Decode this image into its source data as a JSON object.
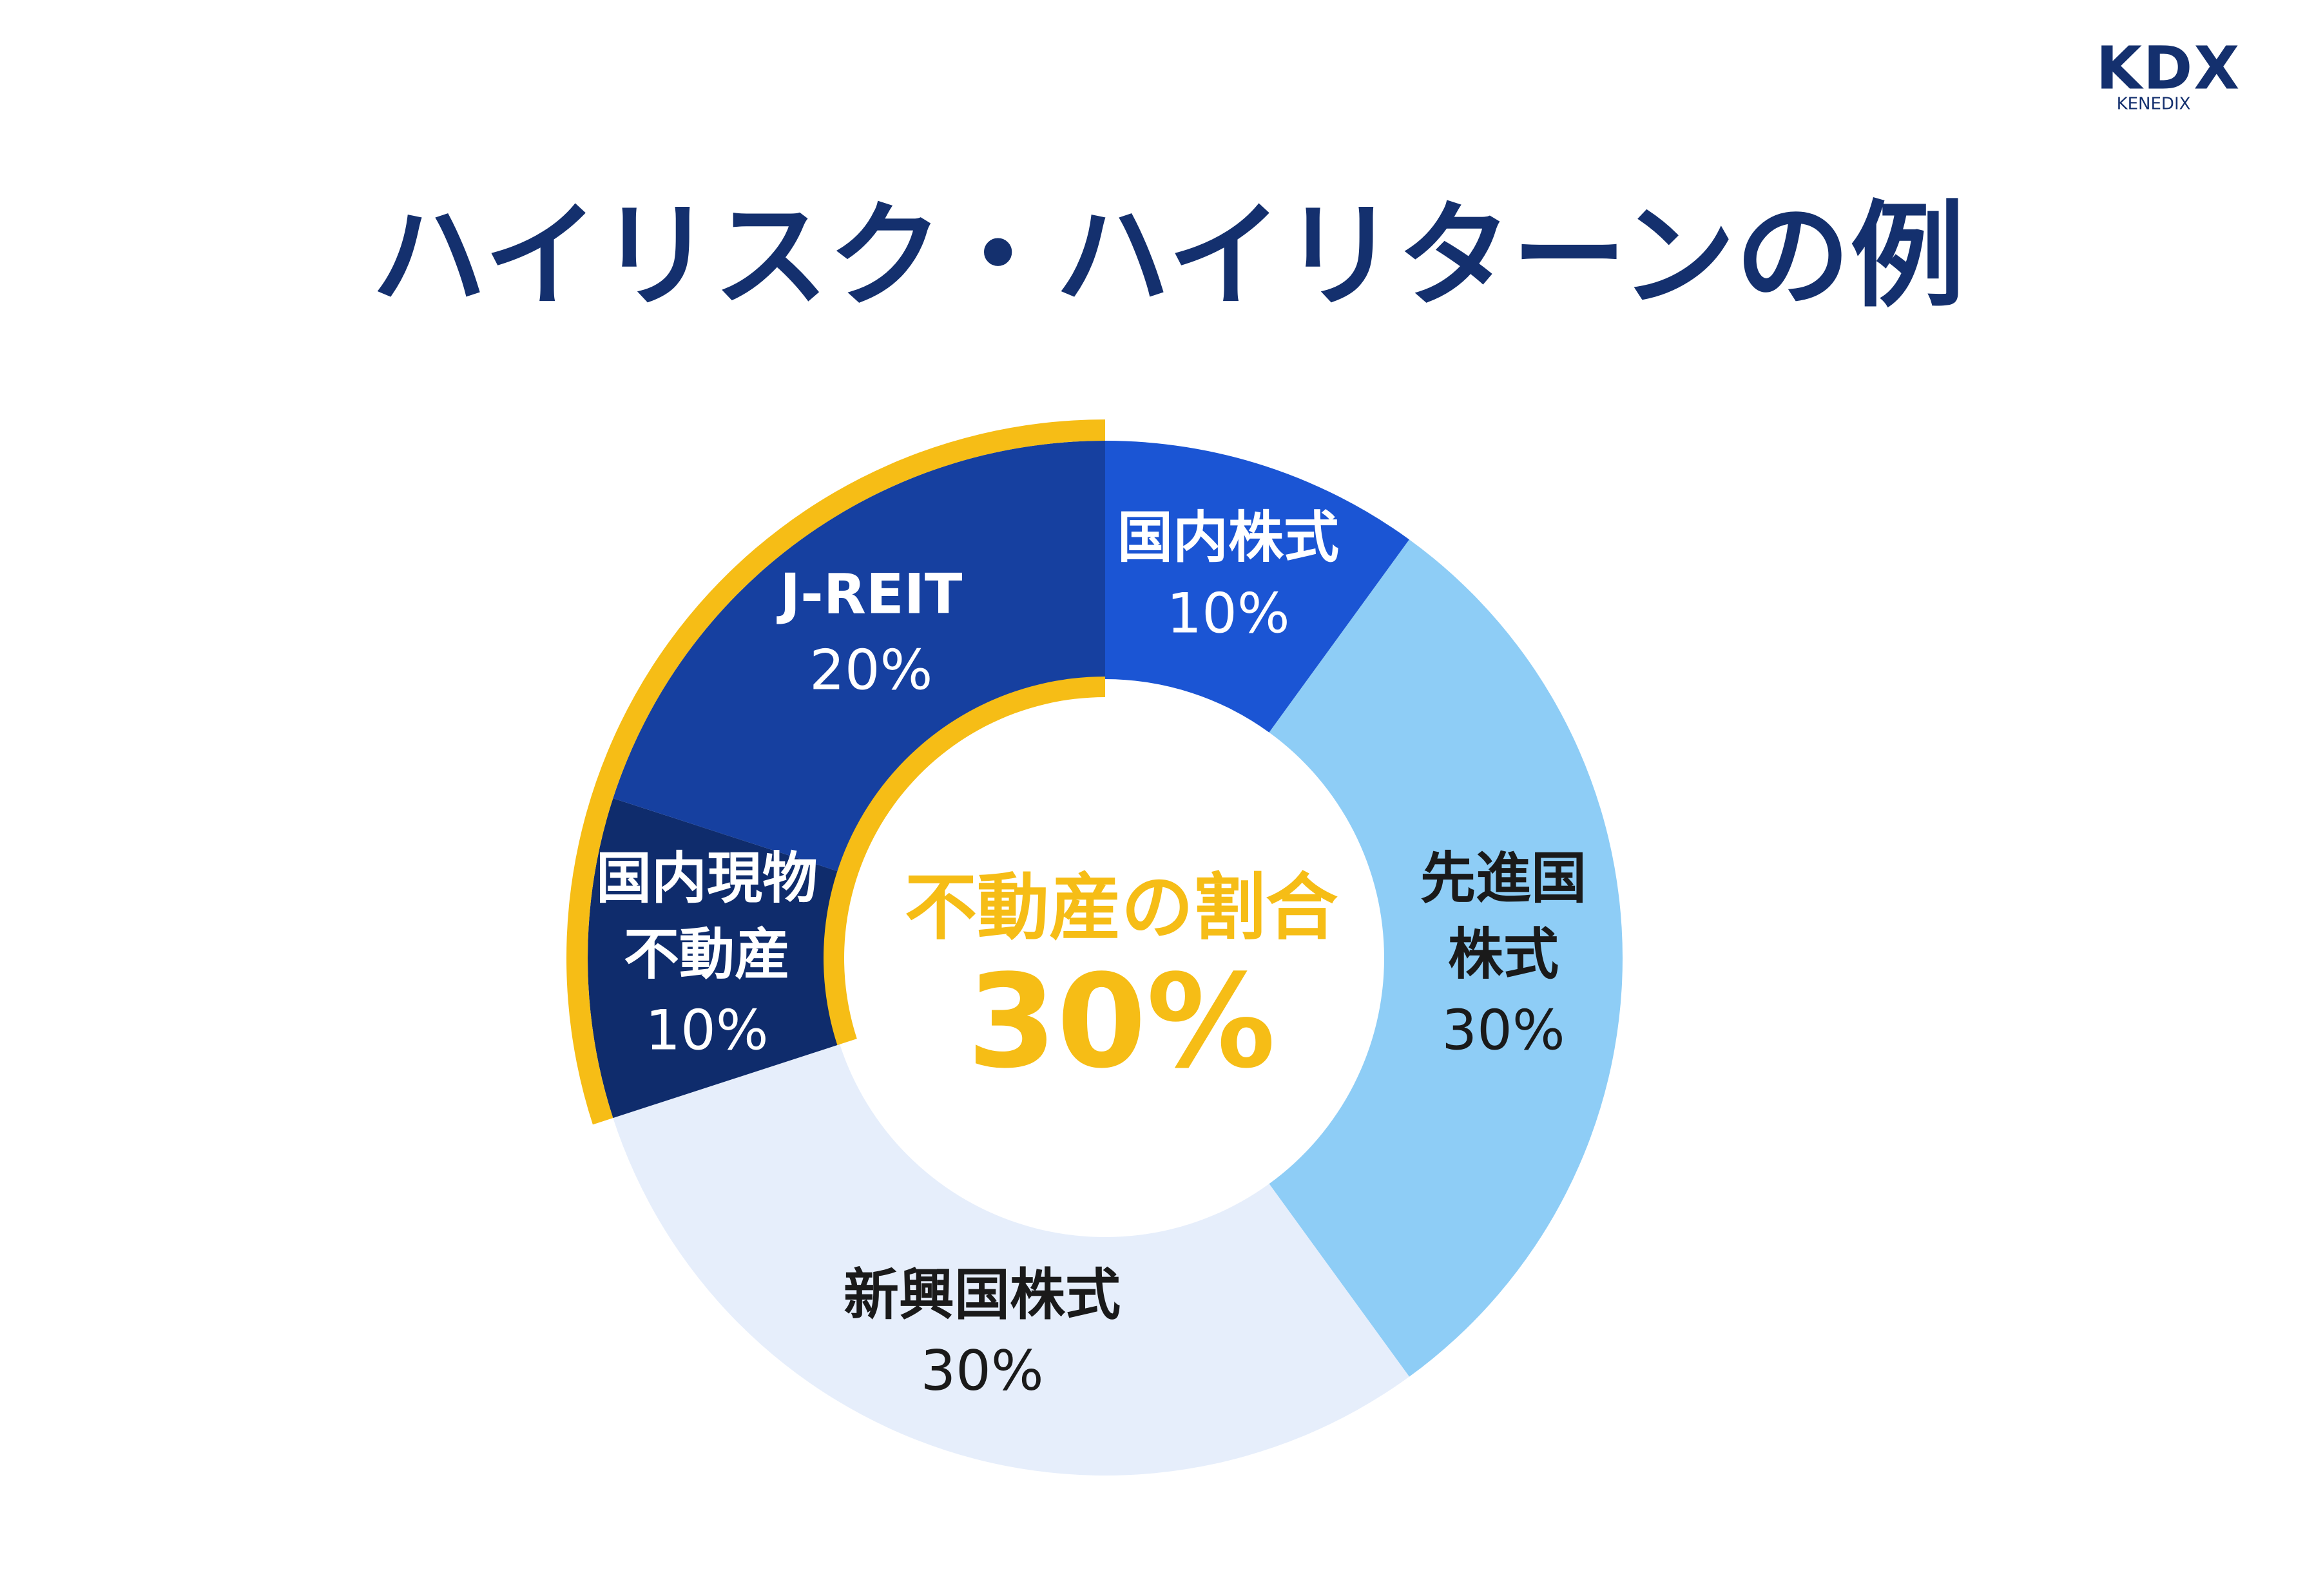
{
  "logo": {
    "name": "KDX",
    "subname": "KENEDIX"
  },
  "chart_data": {
    "type": "donut",
    "title": "ハイリスク・ハイリターンの例",
    "categories": [
      [
        "国内株式"
      ],
      [
        "先進国",
        "株式"
      ],
      [
        "新興国株式"
      ],
      [
        "国内現物",
        "不動産"
      ],
      [
        "J-REIT"
      ]
    ],
    "values": [
      10,
      30,
      30,
      10,
      20
    ],
    "value_labels": [
      "10%",
      "30%",
      "30%",
      "10%",
      "20%"
    ],
    "colors": [
      "#1b55d4",
      "#8ecdf6",
      "#e6eefb",
      "#0f2c6c",
      "#1640a0"
    ],
    "highlight_color": "#f6bd16",
    "center_label": {
      "text": "不動産の割合",
      "value": 30,
      "value_label": "30%"
    }
  }
}
